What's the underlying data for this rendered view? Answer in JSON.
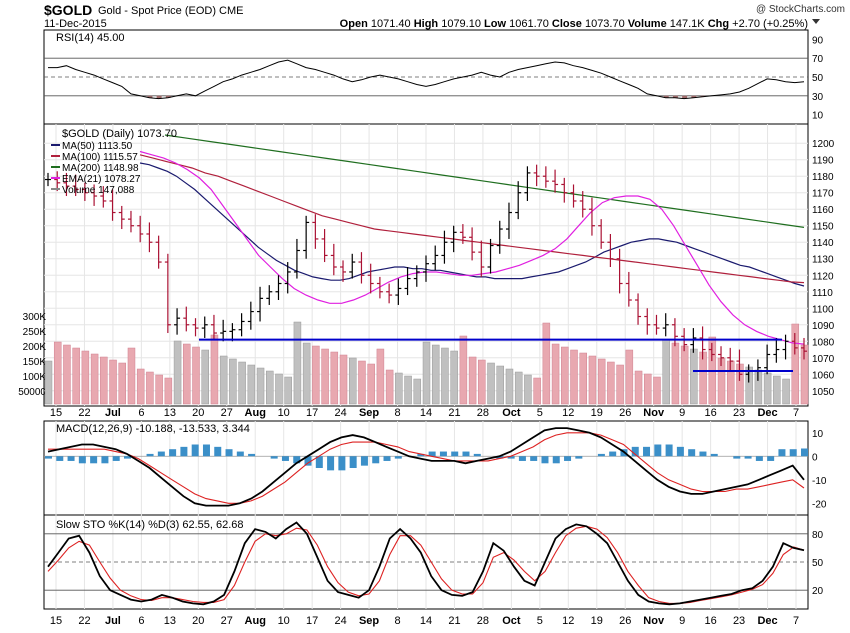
{
  "header": {
    "symbol": "$GOLD",
    "name": "Gold - Spot Price (EOD)",
    "exchange": "CME",
    "date": "11-Dec-2015",
    "open_label": "Open",
    "open": "1071.40",
    "high_label": "High",
    "high": "1079.10",
    "low_label": "Low",
    "low": "1061.70",
    "close_label": "Close",
    "close": "1073.70",
    "volume_label": "Volume",
    "volume": "147.1K",
    "chg_label": "Chg",
    "chg": "+2.70 (+0.25%)",
    "watermark": "@ StockCharts.com"
  },
  "colors": {
    "up_candle": "#000000",
    "down_candle": "#aa1133",
    "ma50": "#1a1a6e",
    "ma100": "#b0203c",
    "ma200": "#1f6e1f",
    "ema21": "#e020e0",
    "support_line": "#0000cc",
    "macd_hist": "#3b8fc8",
    "vol_up": "#c0c0c0",
    "vol_down": "#e8a8b0",
    "rsi_fill": "#a06a6a"
  },
  "chart_data": [
    {
      "type": "line",
      "title": "RSI(14) 45.00",
      "ylim": [
        0,
        100
      ],
      "y_ticks": [
        10,
        30,
        50,
        70,
        90
      ],
      "reference_lines": [
        30,
        50,
        70
      ],
      "series": [
        {
          "name": "RSI(14)",
          "values": [
            60,
            60,
            62,
            58,
            55,
            52,
            48,
            44,
            40,
            32,
            30,
            28,
            27,
            28,
            30,
            32,
            30,
            35,
            40,
            45,
            48,
            52,
            55,
            58,
            62,
            66,
            68,
            64,
            60,
            58,
            55,
            52,
            48,
            45,
            47,
            50,
            52,
            50,
            48,
            45,
            42,
            40,
            42,
            45,
            48,
            50,
            52,
            55,
            52,
            50,
            55,
            58,
            60,
            62,
            64,
            66,
            65,
            62,
            60,
            57,
            54,
            50,
            46,
            42,
            38,
            32,
            30,
            28,
            28,
            27,
            28,
            29,
            30,
            31,
            32,
            34,
            38,
            43,
            48,
            47,
            45,
            44,
            45
          ]
        }
      ]
    },
    {
      "type": "candlestick",
      "title": "$GOLD (Daily) 1073.70",
      "ylim": [
        1042,
        1208
      ],
      "y_ticks": [
        1050,
        1060,
        1070,
        1080,
        1090,
        1100,
        1110,
        1120,
        1130,
        1140,
        1150,
        1160,
        1170,
        1180,
        1190,
        1200
      ],
      "x_ticks": [
        "15",
        "22",
        "Jul",
        "6",
        "13",
        "20",
        "27",
        "Aug",
        "10",
        "17",
        "24",
        "Sep",
        "8",
        "14",
        "21",
        "28",
        "Oct",
        "5",
        "12",
        "19",
        "26",
        "Nov",
        "9",
        "16",
        "23",
        "Dec",
        "7"
      ],
      "legend": [
        {
          "name": "MA(50) 1113.50"
        },
        {
          "name": "MA(100) 1115.57"
        },
        {
          "name": "MA(200) 1148.98"
        },
        {
          "name": "EMA(21) 1078.27"
        },
        {
          "name": "Volume 147,088"
        }
      ],
      "close": [
        1178,
        1176,
        1174,
        1172,
        1170,
        1168,
        1165,
        1158,
        1154,
        1150,
        1145,
        1140,
        1128,
        1090,
        1094,
        1090,
        1088,
        1090,
        1085,
        1086,
        1087,
        1092,
        1098,
        1106,
        1110,
        1115,
        1122,
        1135,
        1152,
        1142,
        1132,
        1125,
        1122,
        1128,
        1120,
        1115,
        1110,
        1108,
        1112,
        1118,
        1122,
        1127,
        1132,
        1140,
        1146,
        1143,
        1134,
        1125,
        1138,
        1148,
        1158,
        1170,
        1182,
        1180,
        1177,
        1175,
        1170,
        1165,
        1160,
        1150,
        1140,
        1130,
        1115,
        1105,
        1095,
        1090,
        1088,
        1090,
        1083,
        1078,
        1082,
        1075,
        1072,
        1070,
        1068,
        1060,
        1062,
        1064,
        1072,
        1075,
        1080,
        1076,
        1074
      ],
      "support_levels": [
        1081,
        1062
      ],
      "moving_averages": {
        "MA(50)": [
          1188,
          1187,
          1185,
          1183,
          1180,
          1176,
          1172,
          1167,
          1162,
          1157,
          1152,
          1147,
          1142,
          1137,
          1133,
          1129,
          1126,
          1123,
          1121,
          1119,
          1118,
          1117,
          1117,
          1118,
          1120,
          1122,
          1123,
          1124,
          1125,
          1125,
          1124,
          1124,
          1123,
          1123,
          1122,
          1121,
          1120,
          1119,
          1119,
          1118,
          1118,
          1118,
          1118,
          1119,
          1120,
          1121,
          1122,
          1124,
          1126,
          1128,
          1131,
          1134,
          1136,
          1138,
          1140,
          1141,
          1142,
          1142,
          1141,
          1140,
          1138,
          1136,
          1134,
          1132,
          1130,
          1128,
          1126,
          1125,
          1123,
          1121,
          1119,
          1117,
          1115,
          1113.5
        ],
        "MA(100)": [
          1193,
          1191,
          1189,
          1187,
          1185,
          1182,
          1180,
          1177,
          1174,
          1171,
          1168,
          1165,
          1162,
          1159,
          1156,
          1154,
          1152,
          1150,
          1148,
          1147,
          1146,
          1145,
          1144,
          1143,
          1142,
          1141,
          1140,
          1139,
          1138,
          1137,
          1136,
          1135,
          1134,
          1133,
          1132,
          1131,
          1130,
          1129,
          1128,
          1127,
          1126,
          1125,
          1124,
          1123,
          1122,
          1121,
          1120,
          1119,
          1118,
          1117,
          1116,
          1115.57
        ],
        "MA(200)": [
          1205,
          1203,
          1201,
          1199,
          1197,
          1195,
          1193,
          1191,
          1189,
          1187,
          1185,
          1183,
          1181,
          1179,
          1177,
          1175,
          1173,
          1171,
          1169,
          1167,
          1165,
          1163,
          1161,
          1159,
          1157,
          1155,
          1153,
          1151,
          1148.98
        ],
        "EMA(21)": [
          1195,
          1193,
          1191,
          1188,
          1184,
          1179,
          1172,
          1162,
          1152,
          1142,
          1132,
          1125,
          1118,
          1112,
          1108,
          1105,
          1103,
          1103,
          1105,
          1108,
          1112,
          1116,
          1119,
          1121,
          1122,
          1122,
          1121,
          1120,
          1120,
          1121,
          1122,
          1124,
          1126,
          1129,
          1132,
          1136,
          1142,
          1150,
          1158,
          1164,
          1167,
          1168,
          1168,
          1166,
          1160,
          1150,
          1138,
          1126,
          1114,
          1104,
          1096,
          1090,
          1086,
          1083,
          1081,
          1079,
          1078.27
        ]
      },
      "volume_axis": {
        "ticks": [
          "300K",
          "250K",
          "200K",
          "150K",
          "100K",
          "50000"
        ]
      }
    },
    {
      "type": "line",
      "title": "MACD(12,26,9) -10.188, -13.533, 3.344",
      "y_ticks": [
        10,
        0,
        -10,
        -20
      ],
      "series": [
        {
          "name": "MACD(12,26,9)",
          "values": [
            2,
            3,
            4,
            5,
            5,
            4,
            3,
            1,
            -2,
            -5,
            -9,
            -13,
            -17,
            -20,
            -21,
            -21,
            -21,
            -20,
            -18,
            -15,
            -11,
            -7,
            -3,
            0,
            3,
            6,
            8,
            9,
            8,
            6,
            4,
            2,
            0,
            -1,
            -2,
            -2,
            -2,
            -3,
            -2,
            -1,
            0,
            2,
            5,
            8,
            11,
            12,
            12,
            11,
            10,
            8,
            5,
            2,
            -2,
            -6,
            -10,
            -13,
            -15,
            -16,
            -16,
            -15,
            -14,
            -13,
            -12,
            -10,
            -8,
            -6,
            -4,
            -10
          ]
        },
        {
          "name": "Signal",
          "values": [
            3,
            3,
            3,
            3,
            3,
            3,
            2,
            1,
            -1,
            -4,
            -7,
            -10,
            -13,
            -16,
            -18,
            -19,
            -20,
            -20,
            -19,
            -17,
            -14,
            -11,
            -7,
            -3,
            0,
            3,
            5,
            6,
            6,
            6,
            5,
            4,
            2,
            1,
            0,
            -1,
            -2,
            -2,
            -2,
            -2,
            -1,
            0,
            2,
            4,
            7,
            9,
            10,
            10,
            10,
            9,
            7,
            5,
            1,
            -3,
            -7,
            -10,
            -12,
            -14,
            -15,
            -15,
            -15,
            -14,
            -14,
            -13,
            -12,
            -11,
            -10,
            -13.5
          ]
        }
      ],
      "histogram": [
        -1,
        -2,
        -2,
        -3,
        -3,
        -3,
        -2,
        -1,
        0,
        1,
        2,
        3,
        4,
        5,
        5,
        4,
        3,
        2,
        1,
        0,
        -1,
        -2,
        -3,
        -4,
        -5,
        -6,
        -6,
        -5,
        -4,
        -3,
        -2,
        -1,
        0,
        1,
        2,
        2,
        2,
        2,
        1,
        0,
        -1,
        -1,
        -2,
        -2,
        -3,
        -3,
        -2,
        -1,
        0,
        1,
        2,
        3,
        4,
        4,
        5,
        5,
        4,
        3,
        2,
        1,
        0,
        -1,
        -1,
        -2,
        -2,
        3,
        3,
        3.3
      ]
    },
    {
      "type": "line",
      "title": "Slow STO %K(14) %D(3) 62.55, 62.68",
      "ylim": [
        0,
        100
      ],
      "y_ticks": [
        20,
        50,
        80
      ],
      "reference_lines": [
        20,
        50,
        80
      ],
      "series": [
        {
          "name": "%K(14)",
          "values": [
            45,
            60,
            75,
            78,
            60,
            35,
            20,
            15,
            10,
            8,
            10,
            15,
            12,
            8,
            6,
            5,
            8,
            15,
            40,
            70,
            85,
            82,
            75,
            85,
            92,
            80,
            55,
            30,
            18,
            15,
            12,
            20,
            45,
            75,
            85,
            75,
            60,
            35,
            20,
            15,
            14,
            18,
            40,
            70,
            62,
            45,
            30,
            25,
            50,
            75,
            85,
            90,
            88,
            80,
            70,
            50,
            30,
            15,
            8,
            6,
            5,
            6,
            8,
            10,
            12,
            14,
            16,
            20,
            22,
            30,
            45,
            70,
            65,
            62.55
          ]
        },
        {
          "name": "%D(3)",
          "values": [
            40,
            52,
            65,
            72,
            68,
            50,
            33,
            20,
            14,
            10,
            9,
            12,
            12,
            10,
            8,
            7,
            7,
            10,
            25,
            50,
            72,
            80,
            78,
            80,
            86,
            84,
            68,
            45,
            28,
            18,
            14,
            16,
            30,
            58,
            78,
            78,
            68,
            50,
            32,
            20,
            16,
            16,
            28,
            55,
            60,
            52,
            40,
            30,
            40,
            60,
            78,
            86,
            88,
            85,
            76,
            60,
            40,
            25,
            12,
            8,
            6,
            6,
            7,
            9,
            11,
            13,
            15,
            18,
            21,
            26,
            38,
            58,
            66,
            62.68
          ]
        }
      ]
    }
  ]
}
